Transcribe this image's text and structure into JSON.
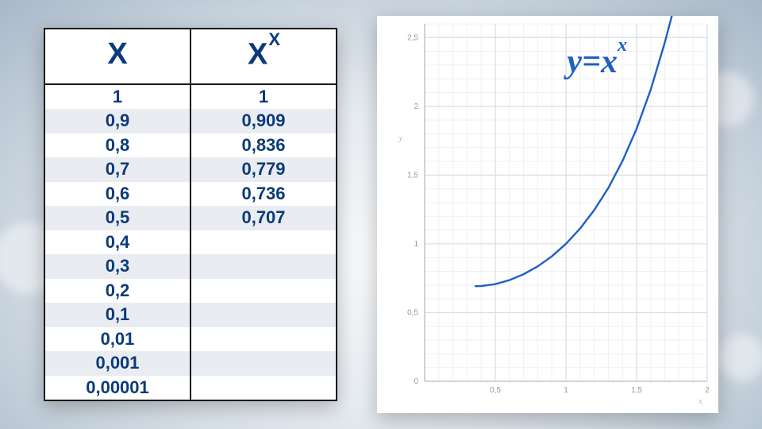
{
  "table": {
    "header_x": "X",
    "header_y_base": "X",
    "header_y_exp": "X",
    "columns": [
      "X",
      "X^X"
    ],
    "rows": [
      {
        "x": "1",
        "y": "1"
      },
      {
        "x": "0,9",
        "y": "0,909"
      },
      {
        "x": "0,8",
        "y": "0,836"
      },
      {
        "x": "0,7",
        "y": "0,779"
      },
      {
        "x": "0,6",
        "y": "0,736"
      },
      {
        "x": "0,5",
        "y": "0,707"
      },
      {
        "x": "0,4",
        "y": ""
      },
      {
        "x": "0,3",
        "y": ""
      },
      {
        "x": "0,2",
        "y": ""
      },
      {
        "x": "0,1",
        "y": ""
      },
      {
        "x": "0,01",
        "y": ""
      },
      {
        "x": "0,001",
        "y": ""
      },
      {
        "x": "0,00001",
        "y": ""
      }
    ],
    "text_color": "#0b3a7a",
    "header_fontsize": 38,
    "cell_fontsize": 22,
    "stripe_color": "#e9edf1",
    "border_color": "#1a1a1a",
    "background_color": "#ffffff"
  },
  "chart": {
    "type": "line",
    "equation_label": "y=x",
    "equation_exp": "x",
    "xlabel": "x",
    "ylabel": "y",
    "xlim": [
      0,
      2
    ],
    "ylim": [
      0,
      2.6
    ],
    "xtick_major": [
      0,
      0.5,
      1,
      1.5,
      2
    ],
    "xtick_labels": [
      "",
      "0,5",
      "1",
      "1,5",
      "2"
    ],
    "ytick_major": [
      0,
      0.5,
      1,
      1.5,
      2,
      2.5
    ],
    "ytick_labels": [
      "0",
      "0,5",
      "1",
      "1,5",
      "2",
      "2,5"
    ],
    "minor_grid_step": 0.1,
    "major_grid_color": "#d9dde2",
    "minor_grid_color": "#eef0f3",
    "axis_color": "#c5c9cf",
    "line_color": "#1f5fc4",
    "line_width": 2.4,
    "label_color": "#b8b8b8",
    "tick_color": "#999999",
    "equation_color": "#1f5fc4",
    "equation_fontsize": 42,
    "background_color": "#ffffff",
    "series": [
      {
        "x": 0.36,
        "y": 0.692
      },
      {
        "x": 0.4,
        "y": 0.693
      },
      {
        "x": 0.5,
        "y": 0.707
      },
      {
        "x": 0.6,
        "y": 0.736
      },
      {
        "x": 0.7,
        "y": 0.779
      },
      {
        "x": 0.8,
        "y": 0.836
      },
      {
        "x": 0.9,
        "y": 0.909
      },
      {
        "x": 1.0,
        "y": 1.0
      },
      {
        "x": 1.1,
        "y": 1.111
      },
      {
        "x": 1.2,
        "y": 1.245
      },
      {
        "x": 1.3,
        "y": 1.406
      },
      {
        "x": 1.4,
        "y": 1.602
      },
      {
        "x": 1.5,
        "y": 1.837
      },
      {
        "x": 1.6,
        "y": 2.121
      },
      {
        "x": 1.7,
        "y": 2.465
      },
      {
        "x": 1.75,
        "y": 2.66
      }
    ]
  }
}
